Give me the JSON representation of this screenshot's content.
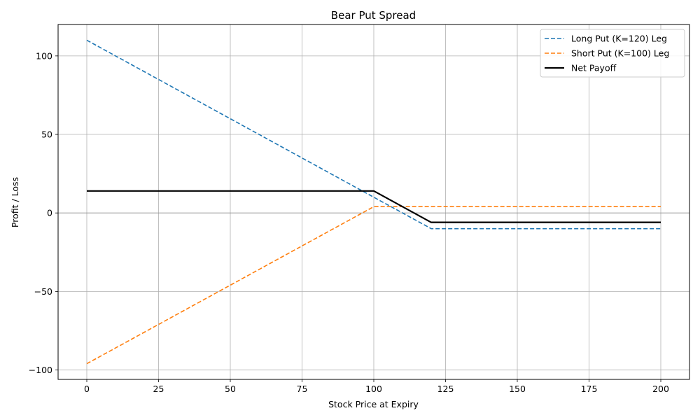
{
  "chart_data": {
    "type": "line",
    "title": "Bear Put Spread",
    "xlabel": "Stock Price at Expiry",
    "ylabel": "Profit / Loss",
    "xlim": [
      -10,
      210
    ],
    "ylim": [
      -106,
      120
    ],
    "xticks": [
      0,
      25,
      50,
      75,
      100,
      125,
      150,
      175,
      200
    ],
    "yticks": [
      -100,
      -50,
      0,
      50,
      100
    ],
    "xtick_labels": [
      "0",
      "25",
      "50",
      "75",
      "100",
      "125",
      "150",
      "175",
      "200"
    ],
    "ytick_labels": [
      "−100",
      "−50",
      "0",
      "50",
      "100"
    ],
    "grid": true,
    "zero_line": true,
    "legend_position": "top-right",
    "series": [
      {
        "name": "Long Put (K=120) Leg",
        "color": "#1f77b4",
        "style": "dashed",
        "x": [
          0,
          120,
          200
        ],
        "y": [
          110,
          -10,
          -10
        ]
      },
      {
        "name": "Short Put (K=100) Leg",
        "color": "#ff7f0e",
        "style": "dashed",
        "x": [
          0,
          100,
          200
        ],
        "y": [
          -96,
          4,
          4
        ]
      },
      {
        "name": "Net Payoff",
        "color": "#000000",
        "style": "solid",
        "x": [
          0,
          100,
          120,
          200
        ],
        "y": [
          14,
          14,
          -6,
          -6
        ]
      }
    ]
  }
}
